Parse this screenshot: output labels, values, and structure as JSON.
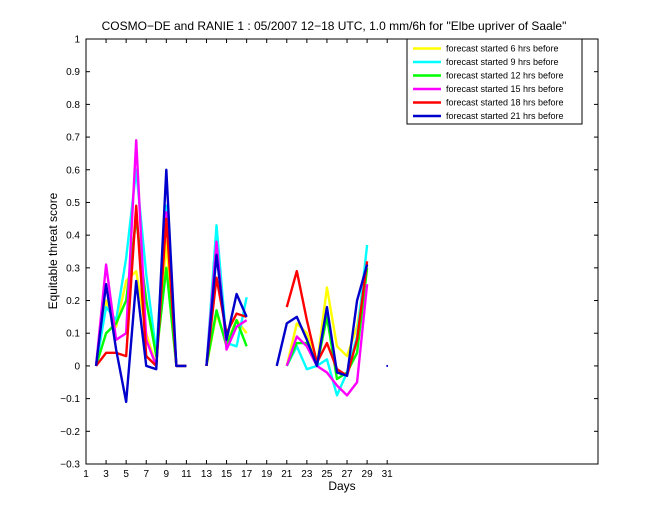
{
  "chart_data": {
    "type": "line",
    "title": "COSMO−DE and RANIE 1 : 05/2007 12−18 UTC, 1.0 mm/6h for \"Elbe upriver of Saale\"",
    "xlabel": "Days",
    "ylabel": "Equitable threat score",
    "xlim": [
      1,
      52
    ],
    "ylim": [
      -0.3,
      1
    ],
    "xticks": [
      1,
      3,
      5,
      7,
      9,
      11,
      13,
      15,
      17,
      19,
      21,
      23,
      25,
      27,
      29,
      31
    ],
    "yticks": [
      -0.3,
      -0.2,
      -0.1,
      0,
      0.1,
      0.2,
      0.3,
      0.4,
      0.5,
      0.6,
      0.7,
      0.8,
      0.9,
      1
    ],
    "ytick_labels": [
      "−0.3",
      "−0.2",
      "−0.1",
      "0",
      "0.1",
      "0.2",
      "0.3",
      "0.4",
      "0.5",
      "0.6",
      "0.7",
      "0.8",
      "0.9",
      "1"
    ],
    "grid": false,
    "legend_position": "top-right",
    "series": [
      {
        "name": "forecast started 6 hrs before",
        "color": "#ffff00",
        "segments": [
          [
            [
              2,
              0.0
            ],
            [
              3,
              0.2
            ],
            [
              4,
              0.12
            ],
            [
              5,
              0.26
            ],
            [
              6,
              0.29
            ],
            [
              7,
              0.1
            ],
            [
              8,
              0.0
            ],
            [
              9,
              0.38
            ],
            [
              10,
              0.0
            ],
            [
              11,
              0.0
            ]
          ],
          [
            [
              13,
              0.0
            ],
            [
              14,
              0.16
            ],
            [
              15,
              0.07
            ],
            [
              16,
              0.14
            ],
            [
              17,
              0.1
            ]
          ],
          [
            [
              21,
              0.0
            ],
            [
              22,
              0.13
            ],
            [
              23,
              0.1
            ],
            [
              24,
              0.0
            ],
            [
              25,
              0.24
            ],
            [
              26,
              0.06
            ],
            [
              27,
              0.03
            ],
            [
              28,
              0.12
            ],
            [
              29,
              0.31
            ]
          ]
        ]
      },
      {
        "name": "forecast started 9 hrs before",
        "color": "#00ffff",
        "segments": [
          [
            [
              2,
              0.0
            ],
            [
              3,
              0.18
            ],
            [
              4,
              0.14
            ],
            [
              5,
              0.33
            ],
            [
              6,
              0.6
            ],
            [
              7,
              0.28
            ],
            [
              8,
              0.04
            ],
            [
              9,
              0.49
            ],
            [
              10,
              0.0
            ],
            [
              11,
              0.0
            ]
          ],
          [
            [
              13,
              0.0
            ],
            [
              14,
              0.43
            ],
            [
              15,
              0.07
            ],
            [
              16,
              0.06
            ],
            [
              17,
              0.21
            ]
          ],
          [
            [
              21,
              0.0
            ],
            [
              22,
              0.06
            ],
            [
              23,
              -0.01
            ],
            [
              24,
              0.0
            ],
            [
              25,
              0.02
            ],
            [
              26,
              -0.09
            ],
            [
              27,
              -0.02
            ],
            [
              28,
              0.09
            ],
            [
              29,
              0.37
            ]
          ]
        ]
      },
      {
        "name": "forecast started 12 hrs before",
        "color": "#00ff00",
        "segments": [
          [
            [
              2,
              0.0
            ],
            [
              3,
              0.1
            ],
            [
              4,
              0.13
            ],
            [
              5,
              0.2
            ],
            [
              6,
              0.45
            ],
            [
              7,
              0.2
            ],
            [
              8,
              0.03
            ],
            [
              9,
              0.3
            ],
            [
              10,
              0.0
            ],
            [
              11,
              0.0
            ]
          ],
          [
            [
              13,
              0.0
            ],
            [
              14,
              0.17
            ],
            [
              15,
              0.06
            ],
            [
              16,
              0.14
            ],
            [
              17,
              0.06
            ]
          ],
          [
            [
              21,
              0.0
            ],
            [
              22,
              0.07
            ],
            [
              23,
              0.07
            ],
            [
              24,
              0.0
            ],
            [
              25,
              0.15
            ],
            [
              26,
              -0.04
            ],
            [
              27,
              -0.02
            ],
            [
              28,
              0.04
            ],
            [
              29,
              0.3
            ]
          ]
        ]
      },
      {
        "name": "forecast started 15 hrs before",
        "color": "#ff00ff",
        "segments": [
          [
            [
              2,
              0.0
            ],
            [
              3,
              0.31
            ],
            [
              4,
              0.08
            ],
            [
              5,
              0.1
            ],
            [
              6,
              0.69
            ],
            [
              7,
              0.08
            ],
            [
              8,
              0.0
            ],
            [
              9,
              0.47
            ],
            [
              10,
              0.0
            ],
            [
              11,
              0.0
            ]
          ],
          [
            [
              13,
              0.0
            ],
            [
              14,
              0.38
            ],
            [
              15,
              0.05
            ],
            [
              16,
              0.12
            ],
            [
              17,
              0.14
            ]
          ],
          [
            [
              21,
              0.0
            ],
            [
              22,
              0.09
            ],
            [
              23,
              0.06
            ],
            [
              24,
              0.0
            ],
            [
              25,
              -0.02
            ],
            [
              26,
              -0.06
            ],
            [
              27,
              -0.09
            ],
            [
              28,
              -0.05
            ],
            [
              29,
              0.25
            ]
          ]
        ]
      },
      {
        "name": "forecast started 18 hrs before",
        "color": "#ff0000",
        "segments": [
          [
            [
              2,
              0.0
            ],
            [
              3,
              0.04
            ],
            [
              4,
              0.04
            ],
            [
              5,
              0.03
            ],
            [
              6,
              0.49
            ],
            [
              7,
              0.03
            ],
            [
              8,
              0.0
            ],
            [
              9,
              0.45
            ],
            [
              10,
              0.0
            ],
            [
              11,
              0.0
            ]
          ],
          [
            [
              13,
              0.0
            ],
            [
              14,
              0.27
            ],
            [
              15,
              0.1
            ],
            [
              16,
              0.16
            ],
            [
              17,
              0.15
            ]
          ],
          [
            [
              21,
              0.18
            ],
            [
              22,
              0.29
            ],
            [
              23,
              0.14
            ],
            [
              24,
              0.01
            ],
            [
              25,
              0.07
            ],
            [
              26,
              -0.01
            ],
            [
              27,
              -0.03
            ],
            [
              28,
              0.08
            ],
            [
              29,
              0.32
            ]
          ]
        ]
      },
      {
        "name": "forecast started 21 hrs before",
        "color": "#0000cc",
        "segments": [
          [
            [
              2,
              0.0
            ],
            [
              3,
              0.25
            ],
            [
              4,
              0.05
            ],
            [
              5,
              -0.11
            ],
            [
              6,
              0.26
            ],
            [
              7,
              0.0
            ],
            [
              8,
              -0.01
            ],
            [
              9,
              0.6
            ],
            [
              10,
              0.0
            ],
            [
              11,
              0.0
            ]
          ],
          [
            [
              13,
              0.0
            ],
            [
              14,
              0.34
            ],
            [
              15,
              0.08
            ],
            [
              16,
              0.22
            ],
            [
              17,
              0.15
            ]
          ],
          [
            [
              20,
              0.0
            ],
            [
              21,
              0.13
            ],
            [
              22,
              0.15
            ],
            [
              23,
              0.08
            ],
            [
              24,
              0.0
            ],
            [
              25,
              0.18
            ],
            [
              26,
              -0.02
            ],
            [
              27,
              -0.03
            ],
            [
              28,
              0.2
            ],
            [
              29,
              0.31
            ]
          ],
          [
            [
              31,
              0.0
            ]
          ]
        ]
      }
    ]
  }
}
